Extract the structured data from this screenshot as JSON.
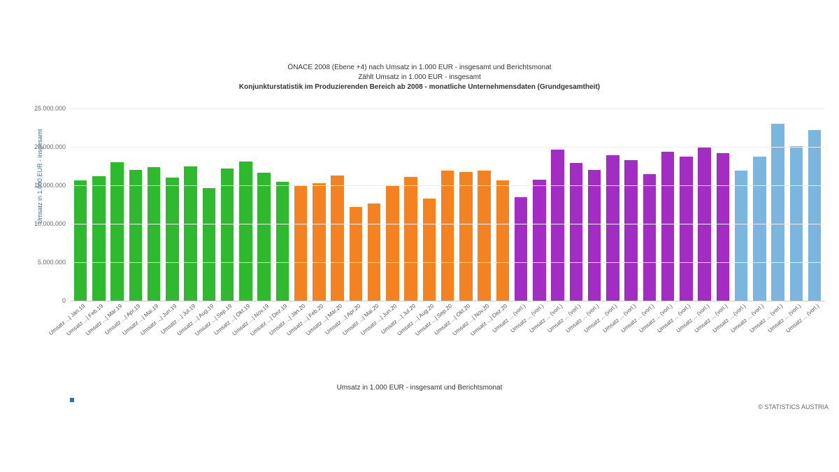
{
  "chart": {
    "type": "bar",
    "title_line1": "ÖNACE 2008 (Ebene +4) nach Umsatz in 1.000 EUR - insgesamt und Berichtsmonat",
    "title_line2": "Zählt Umsatz in 1.000 EUR - insgesamt",
    "title_line3": "Konjunkturstatistik im Produzierenden Bereich ab 2008 - monatliche Unternehmensdaten (Grundgesamtheit)",
    "y_axis_label": "Umsatz in 1.000 EUR - insgesamt",
    "x_axis_label": "Umsatz in 1.000 EUR - insgesamt und Berichtsmonat",
    "attribution": "© STATISTICS AUSTRIA",
    "ylim": [
      0,
      25000000
    ],
    "ytick_step": 5000000,
    "ytick_labels": [
      "0",
      "5.000.000",
      "10.000.000",
      "15.000.000",
      "20.000.000",
      "25.000.000"
    ],
    "background_color": "#ffffff",
    "grid_color": "#eeeeee",
    "axis_color": "#cccccc",
    "tick_font_size": 9,
    "label_font_size": 10,
    "title_font_size": 10,
    "bar_width_ratio": 0.7,
    "series_colors": {
      "2019": "#2fb92f",
      "2020": "#f58220",
      "2021_vorl": "#a32cc4",
      "2022_vorl": "#7bb6e0"
    },
    "categories": [
      "Umsatz ...| Jän.19",
      "Umsatz ...| Feb.19",
      "Umsatz ...| Mär.19",
      "Umsatz ...| Apr.19",
      "Umsatz ...| Mai.19",
      "Umsatz ...| Jun.19",
      "Umsatz ...| Jul.19",
      "Umsatz ...| Aug.19",
      "Umsatz ...| Sep.19",
      "Umsatz ...| Okt.19",
      "Umsatz ...| Nov.19",
      "Umsatz ...| Dez.19",
      "Umsatz ...| Jän.20",
      "Umsatz ...| Feb.20",
      "Umsatz ...| Mär.20",
      "Umsatz ...| Apr.20",
      "Umsatz ...| Mai.20",
      "Umsatz ...| Jun.20",
      "Umsatz ...| Jul.20",
      "Umsatz ...| Aug.20",
      "Umsatz ...| Sep.20",
      "Umsatz ...| Okt.20",
      "Umsatz ...| Nov.20",
      "Umsatz ...| Dez.20",
      "Umsatz ... (vorl.)",
      "Umsatz ... (vorl.)",
      "Umsatz ... (vorl.)",
      "Umsatz ... (vorl.)",
      "Umsatz ... (vorl.)",
      "Umsatz ... (vorl.)",
      "Umsatz ... (vorl.)",
      "Umsatz ... (vorl.)",
      "Umsatz ... (vorl.)",
      "Umsatz ... (vorl.)",
      "Umsatz ... (vorl.)",
      "Umsatz ... (vorl.)",
      "Umsatz ... (vorl.)",
      "Umsatz ... (vorl.)",
      "Umsatz ... (vorl.)",
      "Umsatz ... (vorl.)",
      "Umsatz ... (vorl.)"
    ],
    "values": [
      15600000,
      16200000,
      18000000,
      17000000,
      17400000,
      16000000,
      17500000,
      14600000,
      17200000,
      18100000,
      16600000,
      15500000,
      15000000,
      15300000,
      16300000,
      12200000,
      12600000,
      14900000,
      16100000,
      13300000,
      16900000,
      16700000,
      16900000,
      15600000,
      13500000,
      15700000,
      19600000,
      17900000,
      17000000,
      18900000,
      18300000,
      16500000,
      19400000,
      18700000,
      20000000,
      19200000,
      16900000,
      18700000,
      23000000,
      20100000,
      22200000
    ],
    "bar_colors": [
      "#2fb92f",
      "#2fb92f",
      "#2fb92f",
      "#2fb92f",
      "#2fb92f",
      "#2fb92f",
      "#2fb92f",
      "#2fb92f",
      "#2fb92f",
      "#2fb92f",
      "#2fb92f",
      "#2fb92f",
      "#f58220",
      "#f58220",
      "#f58220",
      "#f58220",
      "#f58220",
      "#f58220",
      "#f58220",
      "#f58220",
      "#f58220",
      "#f58220",
      "#f58220",
      "#f58220",
      "#a32cc4",
      "#a32cc4",
      "#a32cc4",
      "#a32cc4",
      "#a32cc4",
      "#a32cc4",
      "#a32cc4",
      "#a32cc4",
      "#a32cc4",
      "#a32cc4",
      "#a32cc4",
      "#a32cc4",
      "#7bb6e0",
      "#7bb6e0",
      "#7bb6e0",
      "#7bb6e0",
      "#7bb6e0"
    ]
  }
}
